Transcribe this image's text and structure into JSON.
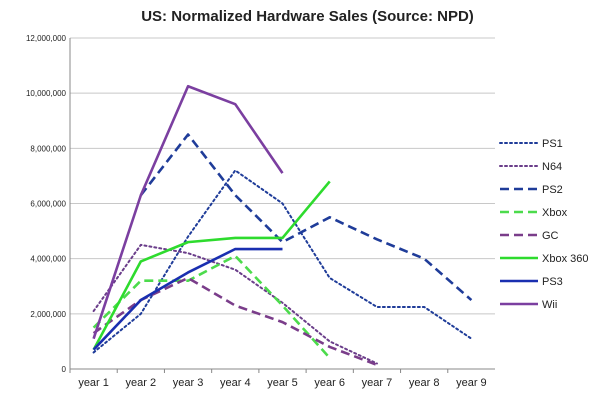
{
  "chart_data": {
    "type": "line",
    "title": "US: Normalized Hardware Sales (Source: NPD)",
    "xlabel": "",
    "ylabel": "",
    "categories": [
      "year 1",
      "year 2",
      "year 3",
      "year 4",
      "year 5",
      "year 6",
      "year 7",
      "year 8",
      "year 9"
    ],
    "ylim": [
      0,
      12000000
    ],
    "yticks": [
      0,
      2000000,
      4000000,
      6000000,
      8000000,
      10000000,
      12000000
    ],
    "ytick_labels": [
      "0",
      "2,000,000",
      "4,000,000",
      "6,000,000",
      "8,000,000",
      "10,000,000",
      "12,000,000"
    ],
    "grid": "horizontal",
    "legend_position": "right",
    "series": [
      {
        "name": "PS1",
        "color": "#1f3c99",
        "dash": "dotted",
        "values": [
          600000,
          2000000,
          4800000,
          7200000,
          6000000,
          3300000,
          2250000,
          2250000,
          1100000
        ]
      },
      {
        "name": "N64",
        "color": "#6a3d8a",
        "dash": "dotted",
        "values": [
          2100000,
          4500000,
          4200000,
          3600000,
          2400000,
          1000000,
          200000,
          null,
          null
        ]
      },
      {
        "name": "PS2",
        "color": "#1f3c99",
        "dash": "dashed",
        "values": [
          null,
          6300000,
          8500000,
          6300000,
          4600000,
          5500000,
          4700000,
          4000000,
          2500000
        ]
      },
      {
        "name": "Xbox",
        "color": "#4cdb4c",
        "dash": "dashed",
        "values": [
          1500000,
          3200000,
          3200000,
          4100000,
          2300000,
          400000,
          null,
          null,
          null
        ]
      },
      {
        "name": "GC",
        "color": "#7a3d8a",
        "dash": "dashed",
        "values": [
          1300000,
          2500000,
          3300000,
          2300000,
          1700000,
          800000,
          150000,
          null,
          null
        ]
      },
      {
        "name": "Xbox 360",
        "color": "#2edb2e",
        "dash": "solid",
        "values": [
          700000,
          3900000,
          4600000,
          4750000,
          4750000,
          6800000,
          null,
          null,
          null
        ]
      },
      {
        "name": "PS3",
        "color": "#1a2fb0",
        "dash": "solid",
        "values": [
          700000,
          2500000,
          3500000,
          4350000,
          4350000,
          null,
          null,
          null,
          null
        ]
      },
      {
        "name": "Wii",
        "color": "#7b3fa0",
        "dash": "solid",
        "values": [
          1100000,
          6300000,
          10250000,
          9600000,
          7100000,
          null,
          null,
          null,
          null
        ]
      }
    ]
  }
}
